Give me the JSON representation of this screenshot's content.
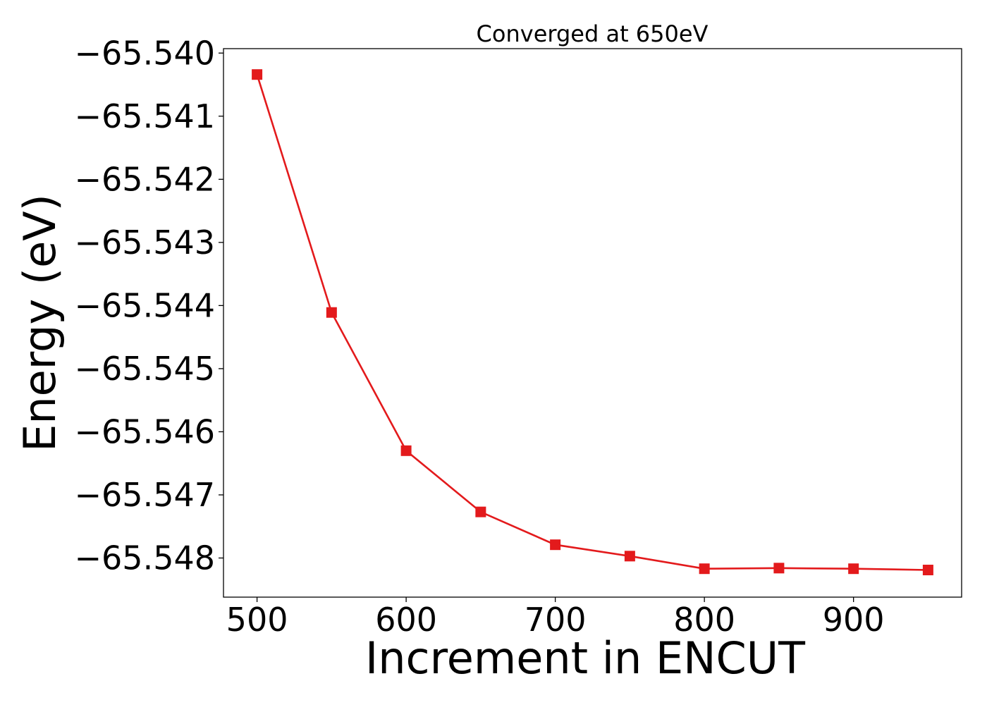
{
  "chart_data": {
    "type": "line",
    "title": "Converged at 650eV",
    "xlabel": "Increment in ENCUT",
    "ylabel": "Energy (eV)",
    "x": [
      500,
      550,
      600,
      650,
      700,
      750,
      800,
      850,
      900,
      950
    ],
    "series": [
      {
        "values": [
          -65.54034,
          -65.54411,
          -65.5463,
          -65.54727,
          -65.54779,
          -65.54797,
          -65.54817,
          -65.54816,
          -65.54817,
          -65.54819
        ],
        "color": "#e31a1c",
        "marker": "square"
      }
    ],
    "xticks": [
      500,
      600,
      700,
      800,
      900
    ],
    "xtick_labels": [
      "500",
      "600",
      "700",
      "800",
      "900"
    ],
    "yticks": [
      -65.54,
      -65.541,
      -65.542,
      -65.543,
      -65.544,
      -65.545,
      -65.546,
      -65.547,
      -65.548
    ],
    "ytick_labels": [
      "−65.540",
      "−65.541",
      "−65.542",
      "−65.543",
      "−65.544",
      "−65.545",
      "−65.546",
      "−65.547",
      "−65.548"
    ],
    "xlim": [
      477.5,
      972.5
    ],
    "ylim": [
      -65.54862,
      -65.53993
    ],
    "grid": false
  }
}
